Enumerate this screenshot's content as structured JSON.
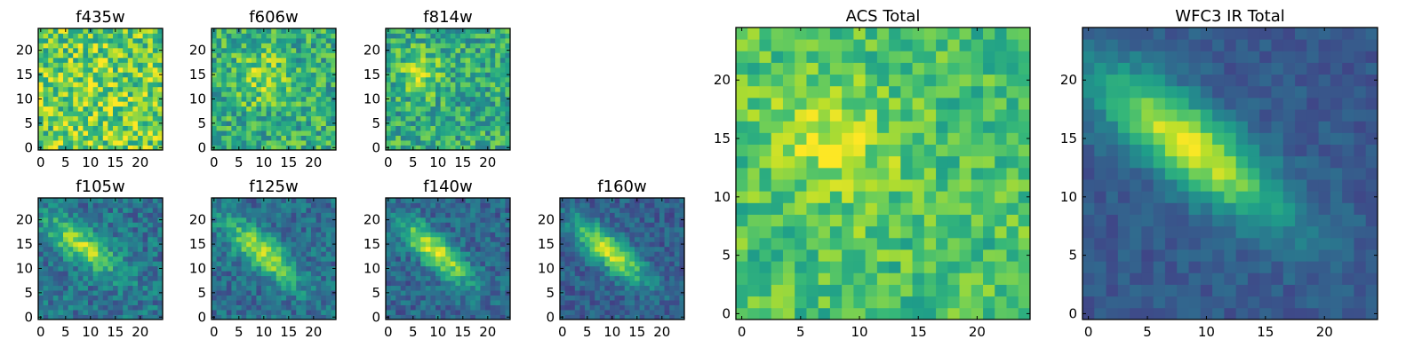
{
  "chart_data": [
    {
      "type": "heatmap",
      "title": "f435w",
      "colormap": "viridis",
      "grid_size": 25,
      "xlim": [
        0,
        25
      ],
      "ylim": [
        0,
        25
      ],
      "xticks": [
        0,
        5,
        10,
        15,
        20
      ],
      "yticks": [
        0,
        5,
        10,
        15,
        20
      ],
      "source": {
        "x": 12,
        "y": 12,
        "sx": 8,
        "sy": 8,
        "rho": 0,
        "amplitude": 0.05
      },
      "baseline": 0.75,
      "noise": 0.26
    },
    {
      "type": "heatmap",
      "title": "f606w",
      "colormap": "viridis",
      "grid_size": 25,
      "xlim": [
        0,
        25
      ],
      "ylim": [
        0,
        25
      ],
      "xticks": [
        0,
        5,
        10,
        15,
        20
      ],
      "yticks": [
        0,
        5,
        10,
        15,
        20
      ],
      "source": {
        "x": 10,
        "y": 15,
        "sx": 4,
        "sy": 4,
        "rho": 0,
        "amplitude": 0.2
      },
      "baseline": 0.62,
      "noise": 0.22
    },
    {
      "type": "heatmap",
      "title": "f814w",
      "colormap": "viridis",
      "grid_size": 25,
      "xlim": [
        0,
        25
      ],
      "ylim": [
        0,
        25
      ],
      "xticks": [
        0,
        5,
        10,
        15,
        20
      ],
      "yticks": [
        0,
        5,
        10,
        15,
        20
      ],
      "source": {
        "x": 7,
        "y": 16,
        "sx": 3,
        "sy": 3,
        "rho": 0,
        "amplitude": 0.28
      },
      "baseline": 0.6,
      "noise": 0.22
    },
    {
      "type": "heatmap",
      "title": "f105w",
      "colormap": "viridis",
      "grid_size": 25,
      "xlim": [
        0,
        25
      ],
      "ylim": [
        0,
        25
      ],
      "xticks": [
        0,
        5,
        10,
        15,
        20
      ],
      "yticks": [
        0,
        5,
        10,
        15,
        20
      ],
      "source": {
        "x": 9,
        "y": 15,
        "sx": 5,
        "sy": 4,
        "rho": -0.75,
        "amplitude": 0.5
      },
      "baseline": 0.38,
      "noise": 0.16
    },
    {
      "type": "heatmap",
      "title": "f125w",
      "colormap": "viridis",
      "grid_size": 25,
      "xlim": [
        0,
        25
      ],
      "ylim": [
        0,
        25
      ],
      "xticks": [
        0,
        5,
        10,
        15,
        20
      ],
      "yticks": [
        0,
        5,
        10,
        15,
        20
      ],
      "source": {
        "x": 10,
        "y": 14,
        "sx": 5,
        "sy": 4.5,
        "rho": -0.78,
        "amplitude": 0.55
      },
      "baseline": 0.36,
      "noise": 0.15
    },
    {
      "type": "heatmap",
      "title": "f140w",
      "colormap": "viridis",
      "grid_size": 25,
      "xlim": [
        0,
        25
      ],
      "ylim": [
        0,
        25
      ],
      "xticks": [
        0,
        5,
        10,
        15,
        20
      ],
      "yticks": [
        0,
        5,
        10,
        15,
        20
      ],
      "source": {
        "x": 10,
        "y": 14,
        "sx": 5,
        "sy": 4.5,
        "rho": -0.8,
        "amplitude": 0.6
      },
      "baseline": 0.33,
      "noise": 0.14
    },
    {
      "type": "heatmap",
      "title": "f160w",
      "colormap": "viridis",
      "grid_size": 25,
      "xlim": [
        0,
        25
      ],
      "ylim": [
        0,
        25
      ],
      "xticks": [
        0,
        5,
        10,
        15,
        20
      ],
      "yticks": [
        0,
        5,
        10,
        15,
        20
      ],
      "source": {
        "x": 10,
        "y": 14,
        "sx": 5,
        "sy": 4.5,
        "rho": -0.8,
        "amplitude": 0.64
      },
      "baseline": 0.3,
      "noise": 0.12
    },
    {
      "type": "heatmap",
      "title": "ACS Total",
      "colormap": "viridis",
      "grid_size": 25,
      "xlim": [
        0,
        25
      ],
      "ylim": [
        0,
        25
      ],
      "xticks": [
        0,
        5,
        10,
        15,
        20
      ],
      "yticks": [
        0,
        5,
        10,
        15,
        20
      ],
      "source": {
        "x": 8,
        "y": 15,
        "sx": 4,
        "sy": 4,
        "rho": -0.3,
        "amplitude": 0.2
      },
      "baseline": 0.7,
      "noise": 0.16
    },
    {
      "type": "heatmap",
      "title": "WFC3 IR Total",
      "colormap": "viridis",
      "grid_size": 25,
      "xlim": [
        0,
        25
      ],
      "ylim": [
        0,
        25
      ],
      "xticks": [
        0,
        5,
        10,
        15,
        20
      ],
      "yticks": [
        0,
        5,
        10,
        15,
        20
      ],
      "source": {
        "x": 9,
        "y": 15,
        "sx": 5.5,
        "sy": 4.5,
        "rho": -0.8,
        "amplitude": 0.68
      },
      "baseline": 0.28,
      "noise": 0.07
    }
  ],
  "colors": {
    "viridis_stops": [
      "#440154",
      "#482878",
      "#3e4a89",
      "#31688e",
      "#26828e",
      "#1f9e89",
      "#35b779",
      "#6ece58",
      "#b5de2b",
      "#fde725"
    ]
  }
}
